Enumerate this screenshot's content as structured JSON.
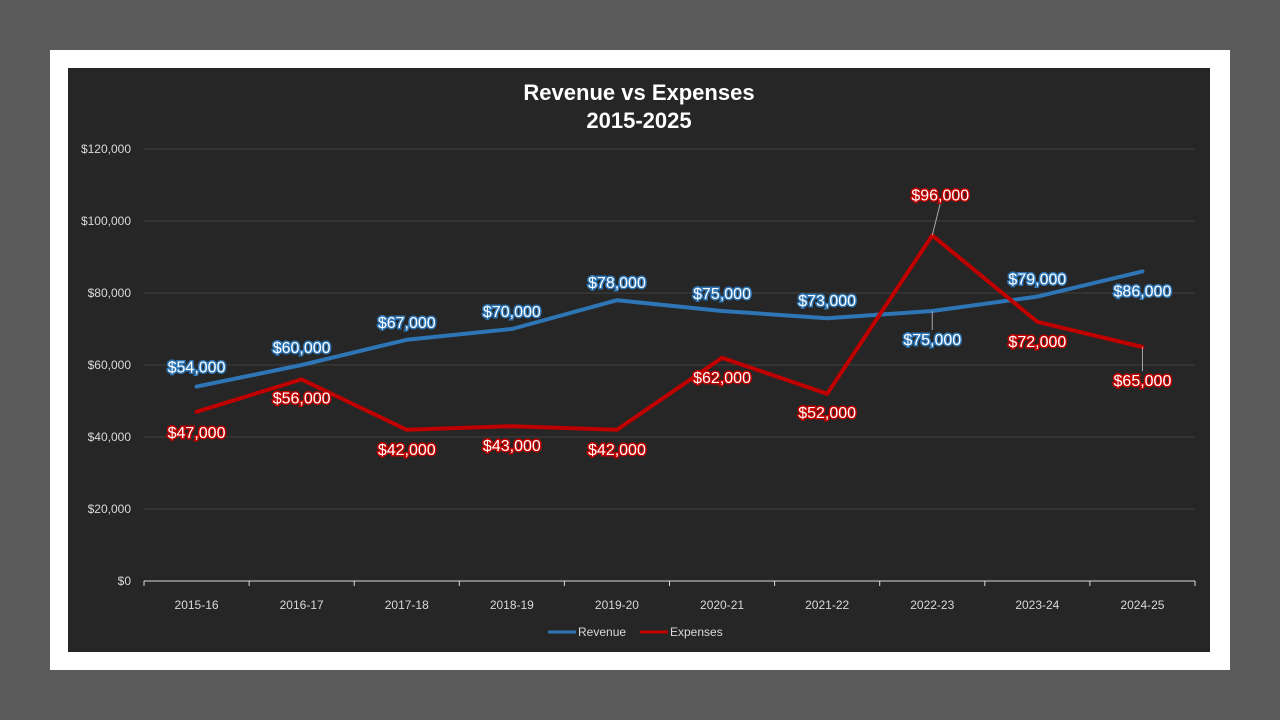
{
  "chart_data": {
    "type": "line",
    "title": "Revenue vs Expenses",
    "subtitle": "2015-2025",
    "xlabel": "",
    "ylabel": "",
    "categories": [
      "2015-16",
      "2016-17",
      "2017-18",
      "2018-19",
      "2019-20",
      "2020-21",
      "2021-22",
      "2022-23",
      "2023-24",
      "2024-25"
    ],
    "ylim": [
      0,
      120000
    ],
    "yticks": [
      "$0",
      "$20,000",
      "$40,000",
      "$60,000",
      "$80,000",
      "$100,000",
      "$120,000"
    ],
    "grid": true,
    "legend_position": "bottom",
    "series": [
      {
        "name": "Revenue",
        "color": "#2e75b6",
        "values": [
          54000,
          60000,
          67000,
          70000,
          78000,
          75000,
          73000,
          75000,
          79000,
          86000
        ],
        "labels": [
          "$54,000",
          "$60,000",
          "$67,000",
          "$70,000",
          "$78,000",
          "$75,000",
          "$73,000",
          "$75,000",
          "$79,000",
          "$86,000"
        ]
      },
      {
        "name": "Expenses",
        "color": "#c00000",
        "values": [
          47000,
          56000,
          42000,
          43000,
          42000,
          62000,
          52000,
          96000,
          72000,
          65000
        ],
        "labels": [
          "$47,000",
          "$56,000",
          "$42,000",
          "$43,000",
          "$42,000",
          "$62,000",
          "$52,000",
          "$96,000",
          "$72,000",
          "$65,000"
        ]
      }
    ]
  }
}
